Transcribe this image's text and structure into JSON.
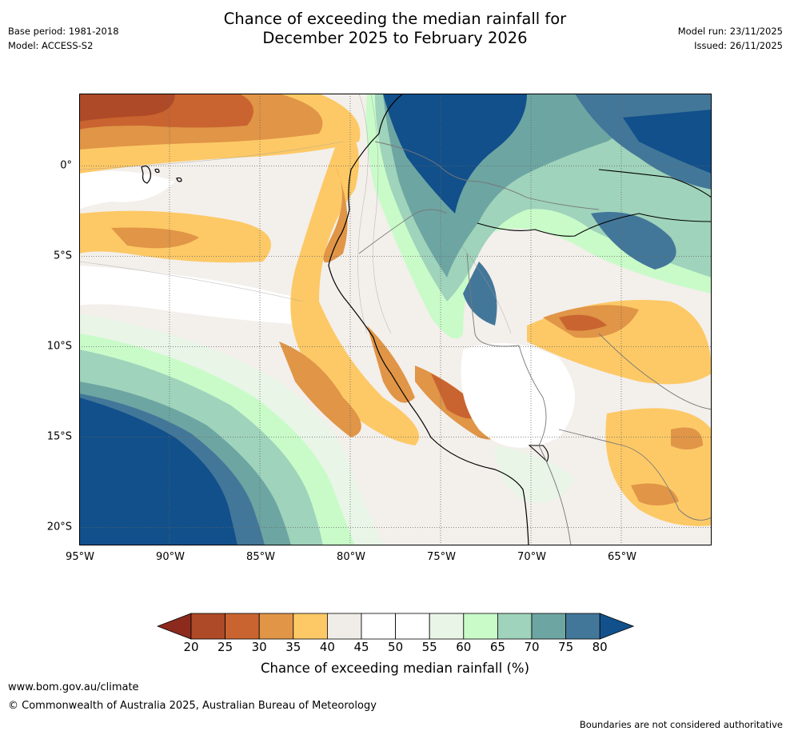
{
  "header": {
    "base_period": "Base period: 1981-2018",
    "model": "Model: ACCESS-S2",
    "model_run": "Model run: 23/11/2025",
    "issued": "Issued: 26/11/2025",
    "title_line1": "Chance of exceeding the median rainfall for",
    "title_line2": "December 2025 to February 2026"
  },
  "map": {
    "region": "Western South America",
    "latitude_labels": [
      "0°",
      "5°S",
      "10°S",
      "15°S",
      "20°S"
    ],
    "longitude_labels": [
      "95°W",
      "90°W",
      "85°W",
      "80°W",
      "75°W",
      "70°W",
      "65°W"
    ],
    "lat_range": [
      -21,
      4
    ],
    "lon_range": [
      -95,
      -60
    ]
  },
  "colorbar": {
    "ticks": [
      "20",
      "25",
      "30",
      "35",
      "40",
      "45",
      "50",
      "55",
      "60",
      "65",
      "70",
      "75",
      "80"
    ],
    "label": "Chance of exceeding median rainfall (%)",
    "low_extend_color": "#8c2a1e",
    "high_extend_color": "#11508b",
    "colors": [
      "#ae4a28",
      "#c96430",
      "#e09547",
      "#fdc966",
      "#f0ece7",
      "#ffffff",
      "#ffffff",
      "#e8f5e7",
      "#c9fbc9",
      "#9fd3bb",
      "#6da5a2",
      "#437799"
    ]
  },
  "footer": {
    "website": "www.bom.gov.au/climate",
    "copyright": "© Commonwealth of Australia 2025, Australian Bureau of Meteorology",
    "disclaimer": "Boundaries are not considered authoritative"
  }
}
